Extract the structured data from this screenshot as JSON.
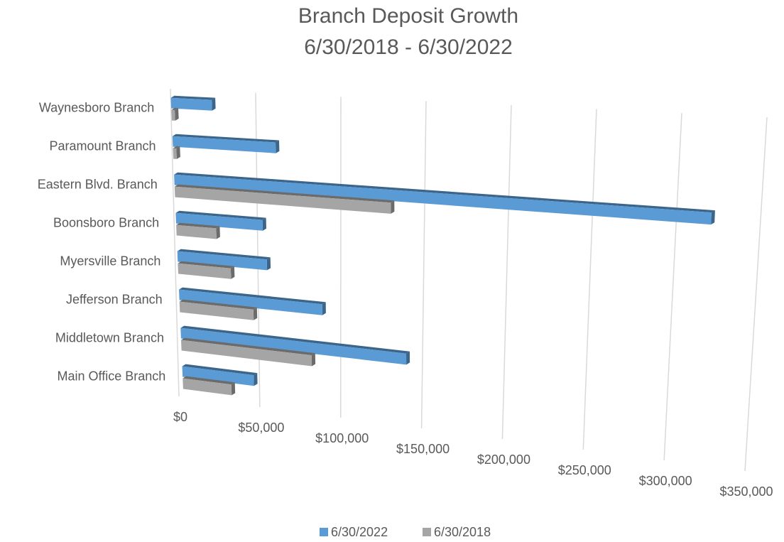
{
  "chart_data": {
    "type": "bar3d-horizontal",
    "title": "Branch Deposit Growth",
    "subtitle": "6/30/2018 - 6/30/2022",
    "categories": [
      "Waynesboro Branch",
      "Paramount Branch",
      "Eastern Blvd. Branch",
      "Boonsboro Branch",
      "Myersville Branch",
      "Jefferson Branch",
      "Middletown Branch",
      "Main Office Branch"
    ],
    "series": [
      {
        "name": "6/30/2022",
        "color": "#5b9bd5",
        "values": [
          24000,
          61000,
          320000,
          52000,
          54000,
          87000,
          138000,
          44000
        ]
      },
      {
        "name": "6/30/2018",
        "color": "#a5a5a5",
        "values": [
          2000,
          2000,
          129000,
          24000,
          32000,
          45000,
          80000,
          30000
        ]
      }
    ],
    "xlim": [
      0,
      350000
    ],
    "xticks": [
      {
        "value": 0,
        "label": "$0"
      },
      {
        "value": 50000,
        "label": "$50,000"
      },
      {
        "value": 100000,
        "label": "$100,000"
      },
      {
        "value": 150000,
        "label": "$150,000"
      },
      {
        "value": 200000,
        "label": "$200,000"
      },
      {
        "value": 250000,
        "label": "$250,000"
      },
      {
        "value": 300000,
        "label": "$300,000"
      },
      {
        "value": 350000,
        "label": "$350,000"
      }
    ],
    "grid": true,
    "legend": "bottom"
  }
}
